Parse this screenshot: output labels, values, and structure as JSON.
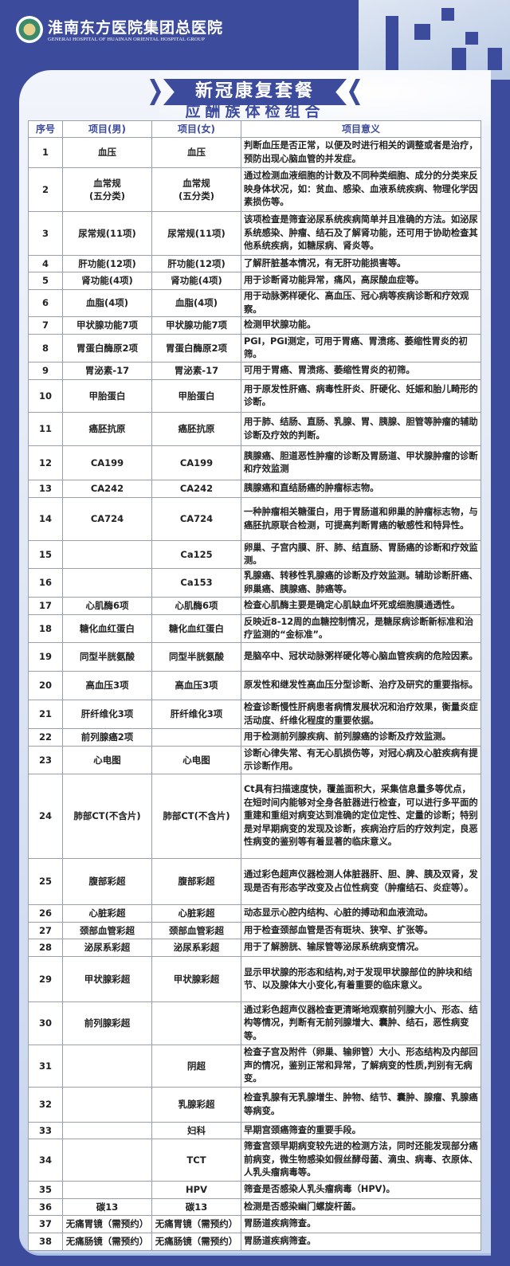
{
  "header": {
    "hospital_name": "淮南东方医院集团总医院",
    "hospital_name_en": "GENERAI HOSPITAL OF HUAINAN ORIENTAL HOSPITAL GROUP"
  },
  "title": "新冠康复套餐",
  "subtitle": "应酬族体检组合",
  "table": {
    "columns": [
      "序号",
      "项目(男)",
      "项目(女)",
      "项目意义"
    ],
    "rows": [
      [
        "1",
        "血压",
        "血压",
        "判断血压是否正常，以便及时进行相关的调整或者是治疗，预防出现心脑血管的并发症。"
      ],
      [
        "2",
        "血常规\n(五分类)",
        "血常规\n(五分类)",
        "通过检测血液细胞的计数及不同种类细胞、成分的分类来反映身体状况，如：贫血、感染、血液系统疾病、物理化学因素损伤等。"
      ],
      [
        "3",
        "尿常规(11项)",
        "尿常规(11项)",
        "该项检查是筛查泌尿系统疾病简单并且准确的方法。如泌尿系统感染、肿瘤、结石及了解肾功能，还可用于协助检查其他系统疾病，如糖尿病、肾炎等。"
      ],
      [
        "4",
        "肝功能(12项)",
        "肝功能(12项)",
        "了解肝脏基本情况，有无肝功能损害等。"
      ],
      [
        "5",
        "肾功能(4项)",
        "肾功能(4项)",
        "用于诊断肾功能异常，痛风，高尿酸血症等。"
      ],
      [
        "6",
        "血脂(4项)",
        "血脂(4项)",
        "用于动脉粥样硬化、高血压、冠心病等疾病诊断和疗效观察。"
      ],
      [
        "7",
        "甲状腺功能7项",
        "甲状腺功能7项",
        "检测甲状腺功能。"
      ],
      [
        "8",
        "胃蛋白酶原2项",
        "胃蛋白酶原2项",
        "PGⅠ，PGⅠ测定，可用于胃癌、胃溃疡、萎缩性胃炎的初筛。"
      ],
      [
        "9",
        "胃泌素-17",
        "胃泌素-17",
        "可用于胃癌、胃溃疡、萎缩性胃炎的初筛。"
      ],
      [
        "10",
        "甲胎蛋白",
        "甲胎蛋白",
        "用于原发性肝癌、病毒性肝炎、肝硬化、妊娠和胎儿畸形的诊断。"
      ],
      [
        "11",
        "癌胚抗原",
        "癌胚抗原",
        "用于肺、结肠、直肠、乳腺、胃、胰腺、胆管等肿瘤的辅助诊断及疗效的判断。"
      ],
      [
        "12",
        "CA199",
        "CA199",
        "胰腺癌、胆道恶性肿瘤的诊断及胃肠道、甲状腺肿瘤的诊断和疗效监测"
      ],
      [
        "13",
        "CA242",
        "CA242",
        "胰腺癌和直结肠癌的肿瘤标志物。"
      ],
      [
        "14",
        "CA724",
        "CA724",
        "一种肿瘤相关糖蛋白，用于胃肠道和卵巢的肿瘤标志物，与癌胚抗原联合检测，可提高判断胃癌的敏感性和特异性。"
      ],
      [
        "15",
        "",
        "Ca125",
        "卵巢、子宫内膜、肝、肺、结直肠、胃肠癌的诊断和疗效监测。"
      ],
      [
        "16",
        "",
        "Ca153",
        "乳腺癌、转移性乳腺癌的诊断及疗效监测。辅助诊断肝癌、卵巢癌、胰腺癌、肺癌等。"
      ],
      [
        "17",
        "心肌酶6项",
        "心肌酶6项",
        "检查心肌酶主要是确定心肌缺血坏死或细胞膜通透性。"
      ],
      [
        "18",
        "糖化血红蛋白",
        "糖化血红蛋白",
        "反映近8-12周的血糖控制情况，是糖尿病诊断新标准和治疗监测的“金标准”。"
      ],
      [
        "19",
        "同型半胱氨酸",
        "同型半胱氨酸",
        "是脑卒中、冠状动脉粥样硬化等心脑血管疾病的危险因素。"
      ],
      [
        "20",
        "高血压3项",
        "高血压3项",
        "原发性和继发性高血压分型诊断、治疗及研究的重要指标。"
      ],
      [
        "21",
        "肝纤维化3项",
        "肝纤维化3项",
        "检查诊断慢性肝病患者病情发展状况和治疗效果，衡量炎症活动度、纤维化程度的重要依据。"
      ],
      [
        "22",
        "前列腺癌2项",
        "",
        "用于检测前列腺疾病、前列腺癌的诊断及疗效监测。"
      ],
      [
        "23",
        "心电图",
        "心电图",
        "诊断心律失常、有无心肌损伤等，对冠心病及心脏疾病有提示诊断作用。"
      ],
      [
        "24",
        "肺部CT(不含片)",
        "肺部CT(不含片)",
        "Ct具有扫描速度快，覆盖面积大，采集信息量多等优点，在短时间内能够对全身各脏器进行检查，可以进行多平面的重建和重组对病变达到准确的定位定性、定量的诊断；特别是对早期病变的发现及诊断，疾病治疗后的疗效判定，良恶性病变的鉴别等有着显著的临床意义。"
      ],
      [
        "25",
        "腹部彩超",
        "腹部彩超",
        "通过彩色超声仪器检测人体脏器肝、胆、脾、胰及双肾，发现是否有形态学改变及占位性病变（肿瘤结石、炎症等）。"
      ],
      [
        "26",
        "心脏彩超",
        "心脏彩超",
        "动态显示心腔内结构、心脏的搏动和血液流动。"
      ],
      [
        "27",
        "颈部血管彩超",
        "颈部血管彩超",
        "用于检查颈部血管是否有斑块、狭窄、扩张等。"
      ],
      [
        "28",
        "泌尿系彩超",
        "泌尿系彩超",
        "用于了解膀胱、输尿管等泌尿系统病变情况。"
      ],
      [
        "29",
        "甲状腺彩超",
        "甲状腺彩超",
        "显示甲状腺的形态和结构,对于发现甲状腺部位的肿块和结节、以及腺体大小变化,有着重要的临床意义。"
      ],
      [
        "30",
        "前列腺彩超",
        "",
        "通过彩色超声仪器检查更清晰地观察前列腺大小、形态、结构等情况，判断有无前列腺增大、囊肿、结石，恶性病变等。"
      ],
      [
        "31",
        "",
        "阴超",
        "检查子宫及附件（卵巢、输卵管）大小、形态结构及内部回声的情况，鉴别正常和异常，了解病变的性质,判别有无病变。"
      ],
      [
        "32",
        "",
        "乳腺彩超",
        "检查乳腺有无乳腺增生、肿物、结节、囊肿、腺瘤、乳腺癌等病变。"
      ],
      [
        "33",
        "",
        "妇科",
        "早期宫颈癌筛查的重要手段。"
      ],
      [
        "34",
        "",
        "TCT",
        "筛查宫颈早期病变较先进的检测方法，同时还能发现部分癌前病变，微生物感染如假丝酵母菌、滴虫、病毒、衣原体、人乳头瘤病毒等。"
      ],
      [
        "35",
        "",
        "HPV",
        "筛查是否感染人乳头瘤病毒（HPV)。"
      ],
      [
        "36",
        "碳13",
        "碳13",
        "检测是否感染幽门螺旋杆菌。"
      ],
      [
        "37",
        "无痛胃镜（需预约）",
        "无痛胃镜（需预约）",
        "胃肠道疾病筛查。"
      ],
      [
        "38",
        "无痛肠镜（需预约）",
        "无痛肠镜（需预约）",
        "胃肠道疾病筛查。"
      ]
    ]
  },
  "colors": {
    "brand_blue": "#3c4b9c",
    "panel": "#f2f5fb"
  }
}
